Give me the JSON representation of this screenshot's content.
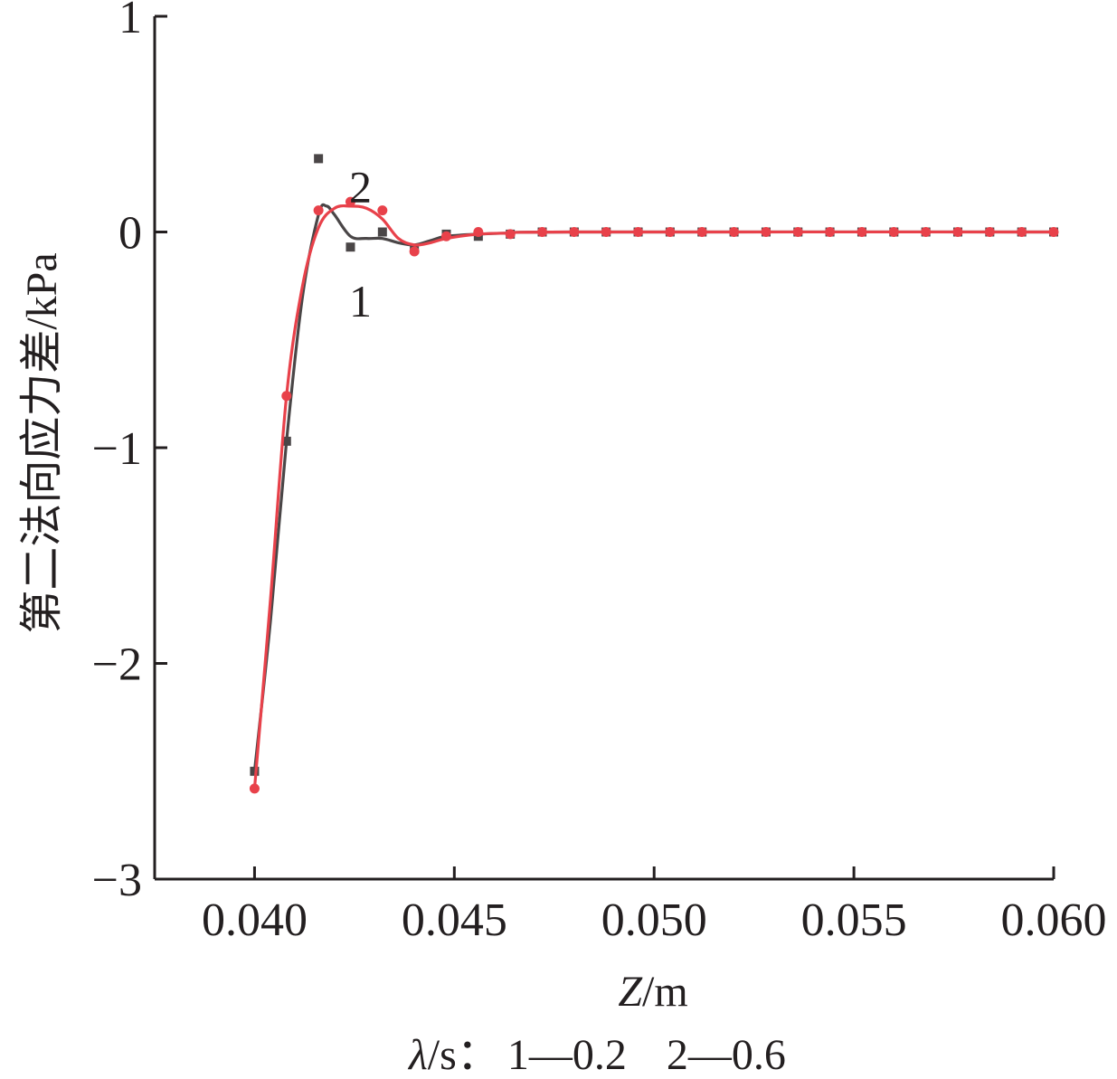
{
  "chart_data": {
    "type": "line",
    "xlabel": "Z/m",
    "xlabel_var": "Z",
    "xlabel_unit": "/m",
    "ylabel": "第二法向应力差/kPa",
    "xlim": [
      0.0375,
      0.06
    ],
    "ylim": [
      -3,
      1
    ],
    "xticks": [
      0.04,
      0.045,
      0.05,
      0.055,
      0.06
    ],
    "xtick_labels": [
      "0.040",
      "0.045",
      "0.050",
      "0.055",
      "0.060"
    ],
    "yticks": [
      -3,
      -2,
      -1,
      0,
      1
    ],
    "ytick_labels": [
      "−3",
      "−2",
      "−1",
      "0",
      "1"
    ],
    "grid": false,
    "legend": {
      "prefix_var": "λ",
      "prefix_unit": "/s：",
      "entries": [
        "1—0.2",
        "2—0.6"
      ]
    },
    "series": [
      {
        "name": "1",
        "lambda": 0.2,
        "color": "#4a4647",
        "marker": "square",
        "points": [
          [
            0.04,
            -2.5
          ],
          [
            0.0408,
            -0.97
          ],
          [
            0.0416,
            0.34
          ],
          [
            0.0424,
            -0.07
          ],
          [
            0.0432,
            0.0
          ],
          [
            0.044,
            -0.08
          ],
          [
            0.0448,
            -0.01
          ],
          [
            0.0456,
            -0.02
          ],
          [
            0.0464,
            -0.01
          ],
          [
            0.0472,
            0.0
          ],
          [
            0.048,
            0.0
          ],
          [
            0.0488,
            0.0
          ],
          [
            0.0496,
            0.0
          ],
          [
            0.0504,
            0.0
          ],
          [
            0.0512,
            0.0
          ],
          [
            0.052,
            0.0
          ],
          [
            0.0528,
            0.0
          ],
          [
            0.0536,
            0.0
          ],
          [
            0.0544,
            0.0
          ],
          [
            0.0552,
            0.0
          ],
          [
            0.056,
            0.0
          ],
          [
            0.0568,
            0.0
          ],
          [
            0.0576,
            0.0
          ],
          [
            0.0584,
            0.0
          ],
          [
            0.0592,
            0.0
          ],
          [
            0.06,
            0.0
          ]
        ],
        "curve": [
          [
            0.04,
            -2.5
          ],
          [
            0.0404,
            -1.8
          ],
          [
            0.0408,
            -0.97
          ],
          [
            0.0412,
            -0.3
          ],
          [
            0.0416,
            0.08
          ],
          [
            0.0418,
            0.12
          ],
          [
            0.042,
            0.08
          ],
          [
            0.0424,
            -0.02
          ],
          [
            0.0428,
            -0.03
          ],
          [
            0.0432,
            -0.03
          ],
          [
            0.0436,
            -0.05
          ],
          [
            0.044,
            -0.06
          ],
          [
            0.0444,
            -0.04
          ],
          [
            0.0448,
            -0.02
          ],
          [
            0.0456,
            -0.01
          ],
          [
            0.0464,
            -0.005
          ],
          [
            0.048,
            0.0
          ],
          [
            0.06,
            0.0
          ]
        ]
      },
      {
        "name": "2",
        "lambda": 0.6,
        "color": "#e8414a",
        "marker": "circle",
        "points": [
          [
            0.04,
            -2.58
          ],
          [
            0.0408,
            -0.76
          ],
          [
            0.0416,
            0.1
          ],
          [
            0.0424,
            0.14
          ],
          [
            0.0432,
            0.1
          ],
          [
            0.044,
            -0.09
          ],
          [
            0.0448,
            -0.02
          ],
          [
            0.0456,
            0.0
          ],
          [
            0.0464,
            -0.01
          ],
          [
            0.0472,
            0.0
          ],
          [
            0.048,
            0.0
          ],
          [
            0.0488,
            0.0
          ],
          [
            0.0496,
            0.0
          ],
          [
            0.0504,
            0.0
          ],
          [
            0.0512,
            0.0
          ],
          [
            0.052,
            0.0
          ],
          [
            0.0528,
            0.0
          ],
          [
            0.0536,
            0.0
          ],
          [
            0.0544,
            0.0
          ],
          [
            0.0552,
            0.0
          ],
          [
            0.056,
            0.0
          ],
          [
            0.0568,
            0.0
          ],
          [
            0.0576,
            0.0
          ],
          [
            0.0584,
            0.0
          ],
          [
            0.0592,
            0.0
          ],
          [
            0.06,
            0.0
          ]
        ],
        "curve": [
          [
            0.04,
            -2.58
          ],
          [
            0.0404,
            -1.7
          ],
          [
            0.0408,
            -0.76
          ],
          [
            0.0412,
            -0.25
          ],
          [
            0.0416,
            0.02
          ],
          [
            0.042,
            0.11
          ],
          [
            0.0424,
            0.12
          ],
          [
            0.0428,
            0.11
          ],
          [
            0.0432,
            0.06
          ],
          [
            0.0436,
            -0.03
          ],
          [
            0.044,
            -0.06
          ],
          [
            0.0444,
            -0.05
          ],
          [
            0.0448,
            -0.03
          ],
          [
            0.0456,
            -0.01
          ],
          [
            0.0464,
            -0.005
          ],
          [
            0.048,
            0.0
          ],
          [
            0.06,
            0.0
          ]
        ]
      }
    ],
    "annotations": [
      {
        "text": "2",
        "x": 0.04265,
        "y": 0.21
      },
      {
        "text": "1",
        "x": 0.04265,
        "y": -0.32
      }
    ]
  }
}
